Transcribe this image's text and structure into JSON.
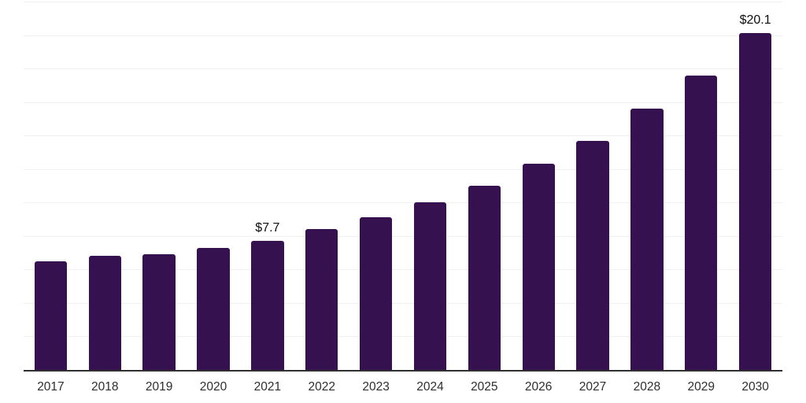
{
  "chart_data": {
    "type": "bar",
    "title": "",
    "xlabel": "",
    "ylabel": "",
    "categories": [
      "2017",
      "2018",
      "2019",
      "2020",
      "2021",
      "2022",
      "2023",
      "2024",
      "2025",
      "2026",
      "2027",
      "2028",
      "2029",
      "2030"
    ],
    "values": [
      6.5,
      6.8,
      6.9,
      7.3,
      7.7,
      8.4,
      9.1,
      10.0,
      11.0,
      12.3,
      13.7,
      15.6,
      17.6,
      20.1
    ],
    "data_labels": {
      "2021": "$7.7",
      "2030": "$20.1"
    },
    "ylim": [
      0,
      22
    ],
    "grid_step": 2,
    "grid": "horizontal",
    "legend": "none",
    "y_axis_tick_labels": "none",
    "colors": {
      "bar": "#36114F",
      "gridline": "#f0f0f0",
      "axis_line": "#303030",
      "tick_label": "#2e2e2e",
      "data_label": "#0d0d0d",
      "background": "#ffffff"
    }
  }
}
